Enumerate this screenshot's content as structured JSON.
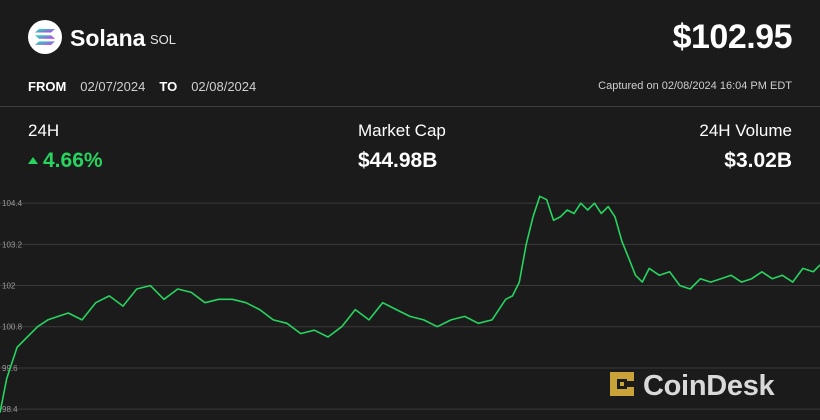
{
  "header": {
    "coin_name": "Solana",
    "coin_symbol": "SOL",
    "price": "$102.95",
    "logo_icon": "solana-logo-icon"
  },
  "range": {
    "from_label": "FROM",
    "from_date": "02/07/2024",
    "to_label": "TO",
    "to_date": "02/08/2024",
    "captured": "Captured on 02/08/2024 16:04 PM EDT"
  },
  "stats": [
    {
      "label": "24H",
      "value": "4.66%",
      "direction": "up"
    },
    {
      "label": "Market Cap",
      "value": "$44.98B"
    },
    {
      "label": "24H Volume",
      "value": "$3.02B"
    }
  ],
  "brand": {
    "name": "CoinDesk",
    "icon": "coindesk-logo-icon"
  },
  "colors": {
    "background": "#1b1b1b",
    "line": "#27d45f",
    "grid": "#3a3a3a",
    "positive": "#27d45f"
  },
  "chart_data": {
    "type": "line",
    "title": "",
    "xlabel": "",
    "ylabel": "",
    "y_ticks": [
      "104.4",
      "103.2",
      "102",
      "100.8",
      "99.6",
      "98.4"
    ],
    "y_tick_values": [
      104.4,
      103.2,
      102,
      100.8,
      99.6,
      98.4
    ],
    "ylim": [
      98.2,
      104.9
    ],
    "xlim": [
      0,
      24
    ],
    "grid": true,
    "legend": "none",
    "series": [
      {
        "x": [
          0,
          0.2,
          0.5,
          0.8,
          1.1,
          1.4,
          1.7,
          2.0,
          2.4,
          2.8,
          3.2,
          3.6,
          4.0,
          4.4,
          4.8,
          5.2,
          5.6,
          6.0,
          6.4,
          6.8,
          7.2,
          7.6,
          8.0,
          8.4,
          8.8,
          9.2,
          9.6,
          10.0,
          10.4,
          10.8,
          11.2,
          11.6,
          12.0,
          12.4,
          12.8,
          13.2,
          13.6,
          14.0,
          14.4,
          14.8,
          15.0,
          15.2,
          15.4,
          15.6,
          15.8,
          16.0,
          16.2,
          16.4,
          16.6,
          16.8,
          17.0,
          17.2,
          17.4,
          17.6,
          17.8,
          18.0,
          18.2,
          18.4,
          18.6,
          18.8,
          19.0,
          19.3,
          19.6,
          19.9,
          20.2,
          20.5,
          20.8,
          21.1,
          21.4,
          21.7,
          22.0,
          22.3,
          22.6,
          22.9,
          23.2,
          23.5,
          23.8,
          24.0
        ],
        "y": [
          98.3,
          99.3,
          100.2,
          100.5,
          100.8,
          101.0,
          101.1,
          101.2,
          101.0,
          101.5,
          101.7,
          101.4,
          101.9,
          102.0,
          101.6,
          101.9,
          101.8,
          101.5,
          101.6,
          101.6,
          101.5,
          101.3,
          101.0,
          100.9,
          100.6,
          100.7,
          100.5,
          100.8,
          101.3,
          101.0,
          101.5,
          101.3,
          101.1,
          101.0,
          100.8,
          101.0,
          101.1,
          100.9,
          101.0,
          101.6,
          101.7,
          102.1,
          103.2,
          104.0,
          104.6,
          104.5,
          103.9,
          104.0,
          104.2,
          104.1,
          104.4,
          104.2,
          104.4,
          104.1,
          104.3,
          104.0,
          103.3,
          102.8,
          102.3,
          102.1,
          102.5,
          102.3,
          102.4,
          102.0,
          101.9,
          102.2,
          102.1,
          102.2,
          102.3,
          102.1,
          102.2,
          102.4,
          102.2,
          102.3,
          102.1,
          102.5,
          102.4,
          102.6
        ]
      }
    ]
  }
}
